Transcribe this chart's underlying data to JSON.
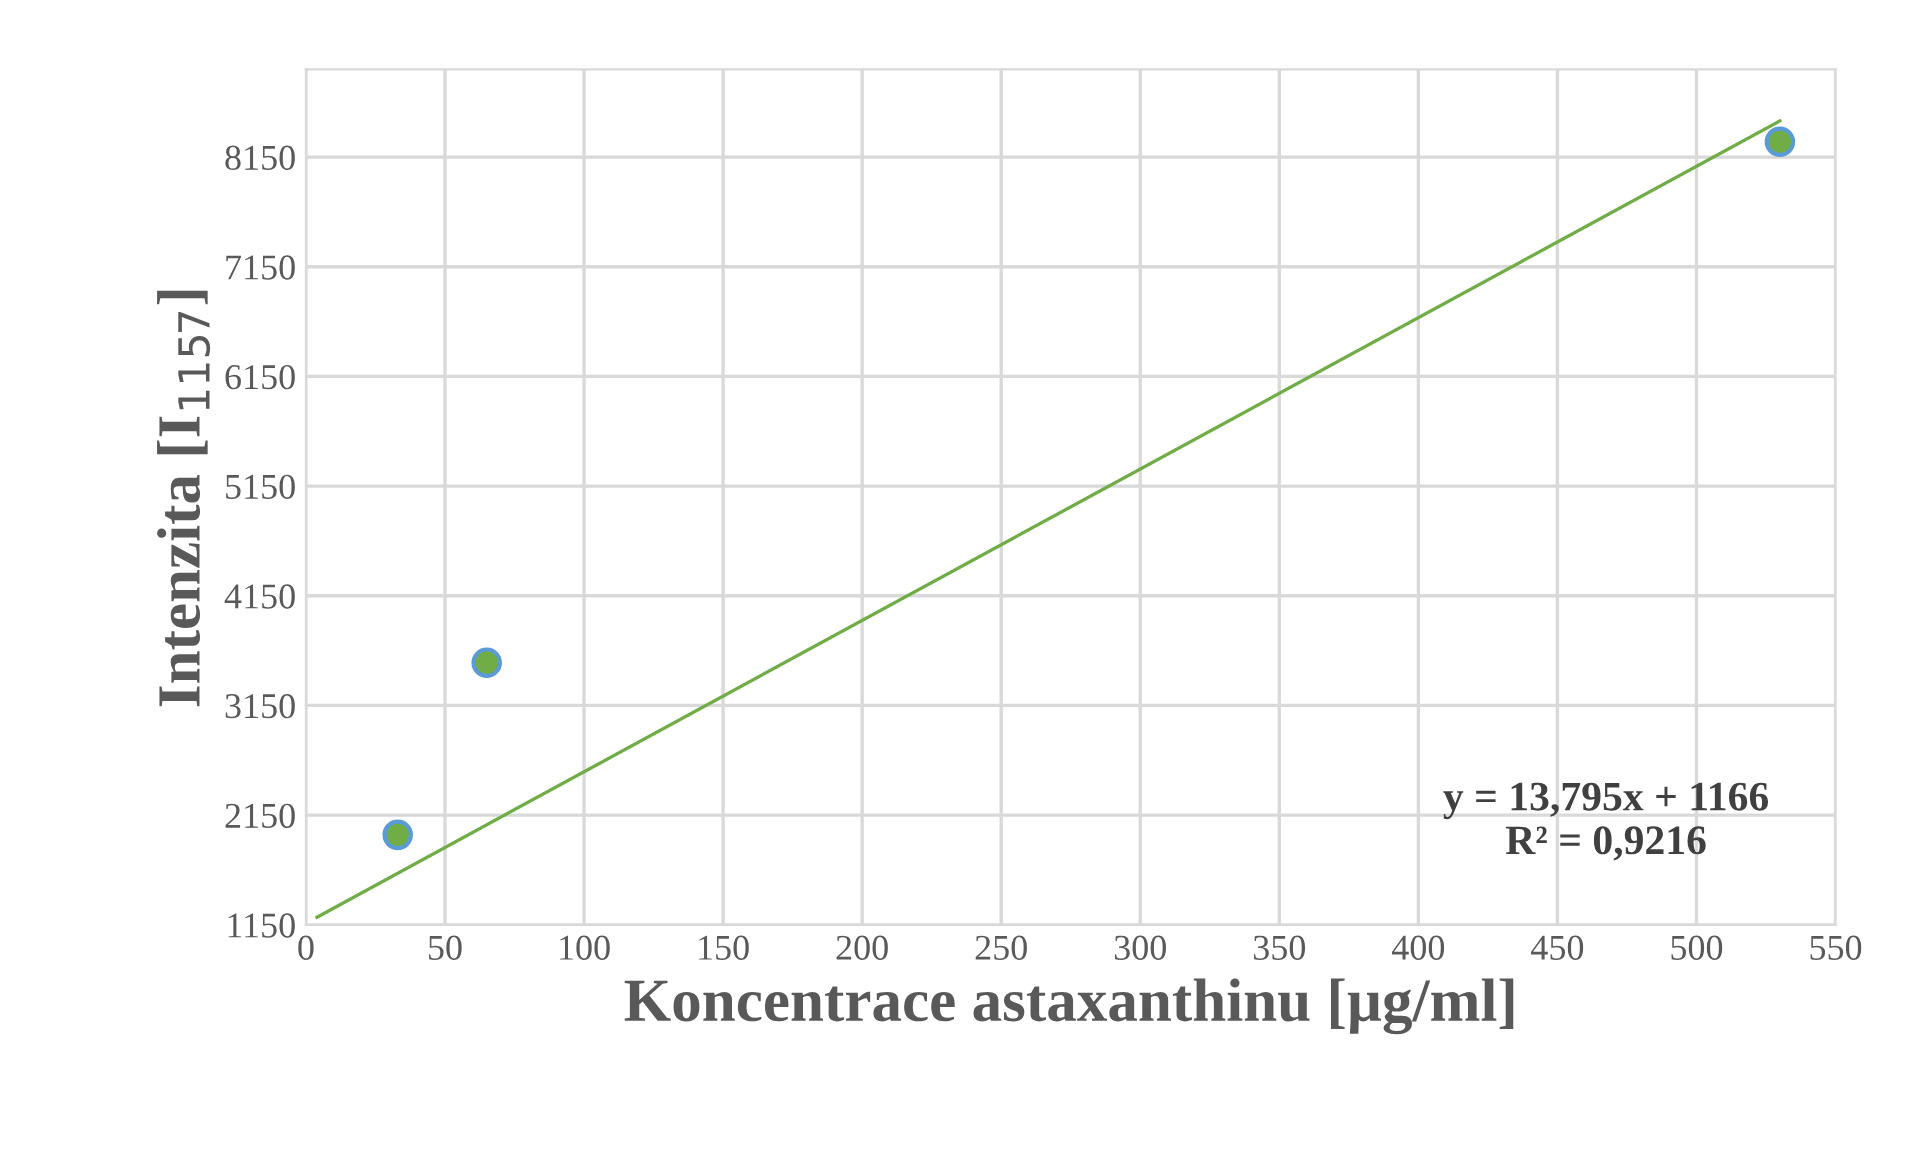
{
  "chart_data": {
    "type": "scatter",
    "xlabel": "Koncentrace astaxanthinu [µg/ml]",
    "ylabel": "Intenzita [I$_{1157}$]",
    "xlim": [
      0,
      550
    ],
    "xticks": [
      0,
      50,
      100,
      150,
      200,
      250,
      300,
      350,
      400,
      450,
      500,
      550
    ],
    "ylim": [
      1150,
      8950
    ],
    "yticks": [
      1150,
      2150,
      3150,
      4150,
      5150,
      6150,
      7150,
      8150
    ],
    "grid": true,
    "legend": false,
    "series": [
      {
        "color": "#70ad47",
        "marker": "circle",
        "x": [
          33,
          65,
          530
        ],
        "values": [
          1970,
          3540,
          8290
        ]
      },
      {
        "type": "line",
        "color": "#70ad47",
        "marker": "none",
        "line_style": "solid",
        "x": [
          4,
          530
        ],
        "values": [
          1220,
          8480
        ]
      }
    ],
    "annotations": [
      "y = 13,795x + 1166\nR² = 0,9216"
    ]
  }
}
